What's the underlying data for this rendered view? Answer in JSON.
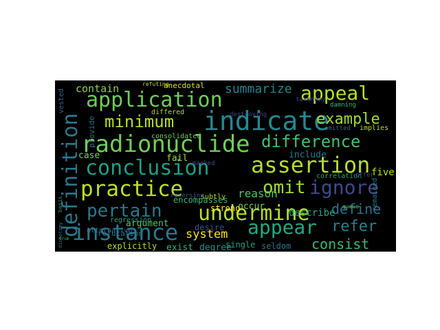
{
  "words": [
    {
      "text": "indicate",
      "color": "#23898e"
    },
    {
      "text": "assertion",
      "color": "#b5de2b"
    },
    {
      "text": "radionuclide",
      "color": "#6ece58"
    },
    {
      "text": "conclusion",
      "color": "#1f9e89"
    },
    {
      "text": "instance",
      "color": "#2a788e"
    },
    {
      "text": "undermine",
      "color": "#b5de2b"
    },
    {
      "text": "application",
      "color": "#6ece58"
    },
    {
      "text": "practice",
      "color": "#bddf26"
    },
    {
      "text": "definition",
      "color": "#2a788e"
    },
    {
      "text": "appear",
      "color": "#22a884"
    },
    {
      "text": "appeal",
      "color": "#b5de2b"
    },
    {
      "text": "ignore",
      "color": "#3e4a89"
    },
    {
      "text": "pertain",
      "color": "#2a788e"
    },
    {
      "text": "difference",
      "color": "#44bf70"
    },
    {
      "text": "minimum",
      "color": "#b5de2b"
    },
    {
      "text": "example",
      "color": "#a0da39"
    },
    {
      "text": "omit",
      "color": "#a0da39"
    },
    {
      "text": "refer",
      "color": "#26828e"
    },
    {
      "text": "define",
      "color": "#2c728e"
    },
    {
      "text": "consist",
      "color": "#3bbb75"
    },
    {
      "text": "summarize",
      "color": "#26828e"
    },
    {
      "text": "system",
      "color": "#fde725"
    },
    {
      "text": "reason",
      "color": "#52c569"
    },
    {
      "text": "contain",
      "color": "#8ed645"
    },
    {
      "text": "describe",
      "color": "#22a884"
    },
    {
      "text": "include",
      "color": "#2a788e"
    },
    {
      "text": "argument",
      "color": "#52c569"
    },
    {
      "text": "occur",
      "color": "#7ad151"
    },
    {
      "text": "exist",
      "color": "#2fb47c"
    },
    {
      "text": "degree",
      "color": "#21918c"
    },
    {
      "text": "explicitly",
      "color": "#b5de2b"
    },
    {
      "text": "single",
      "color": "#20a386"
    },
    {
      "text": "seldom",
      "color": "#2c728e"
    },
    {
      "text": "strong",
      "color": "#fde725"
    },
    {
      "text": "desire",
      "color": "#3b528b"
    },
    {
      "text": "five",
      "color": "#b5de2b"
    },
    {
      "text": "case",
      "color": "#7ad151"
    },
    {
      "text": "fail",
      "color": "#a0da39"
    },
    {
      "text": "encompasses",
      "color": "#35b779"
    },
    {
      "text": "refutation",
      "color": "#2a788e"
    },
    {
      "text": "anecdotal",
      "color": "#d8e219"
    },
    {
      "text": "consolidated",
      "color": "#6ece58"
    },
    {
      "text": "correlation",
      "color": "#1fa187"
    },
    {
      "text": "differed",
      "color": "#addc30"
    },
    {
      "text": "alternatives",
      "color": "#2c728e"
    },
    {
      "text": "provide",
      "color": "#31688e"
    },
    {
      "text": "subtly",
      "color": "#b5de2b"
    },
    {
      "text": "regression",
      "color": "#20a386"
    },
    {
      "text": "reversing",
      "color": "#3b528b"
    },
    {
      "text": "destroying",
      "color": "#414487"
    },
    {
      "text": "implies",
      "color": "#b5de2b"
    },
    {
      "text": "omitted",
      "color": "#31688e"
    },
    {
      "text": "taxonomy",
      "color": "#3e4a89"
    },
    {
      "text": "remained",
      "color": "#2a788e"
    },
    {
      "text": "offer",
      "color": "#3e4a89"
    },
    {
      "text": "vested",
      "color": "#31688e"
    },
    {
      "text": "refuting",
      "color": "#b5de2b"
    },
    {
      "text": "damning",
      "color": "#35b779"
    },
    {
      "text": "marked",
      "color": "#3e4a89"
    },
    {
      "text": "basis",
      "color": "#21918c"
    },
    {
      "text": "dichotomy",
      "color": "#2a788e"
    },
    {
      "text": "trum",
      "color": "#44bf70"
    },
    {
      "text": "queue",
      "color": "#5ec962"
    }
  ]
}
